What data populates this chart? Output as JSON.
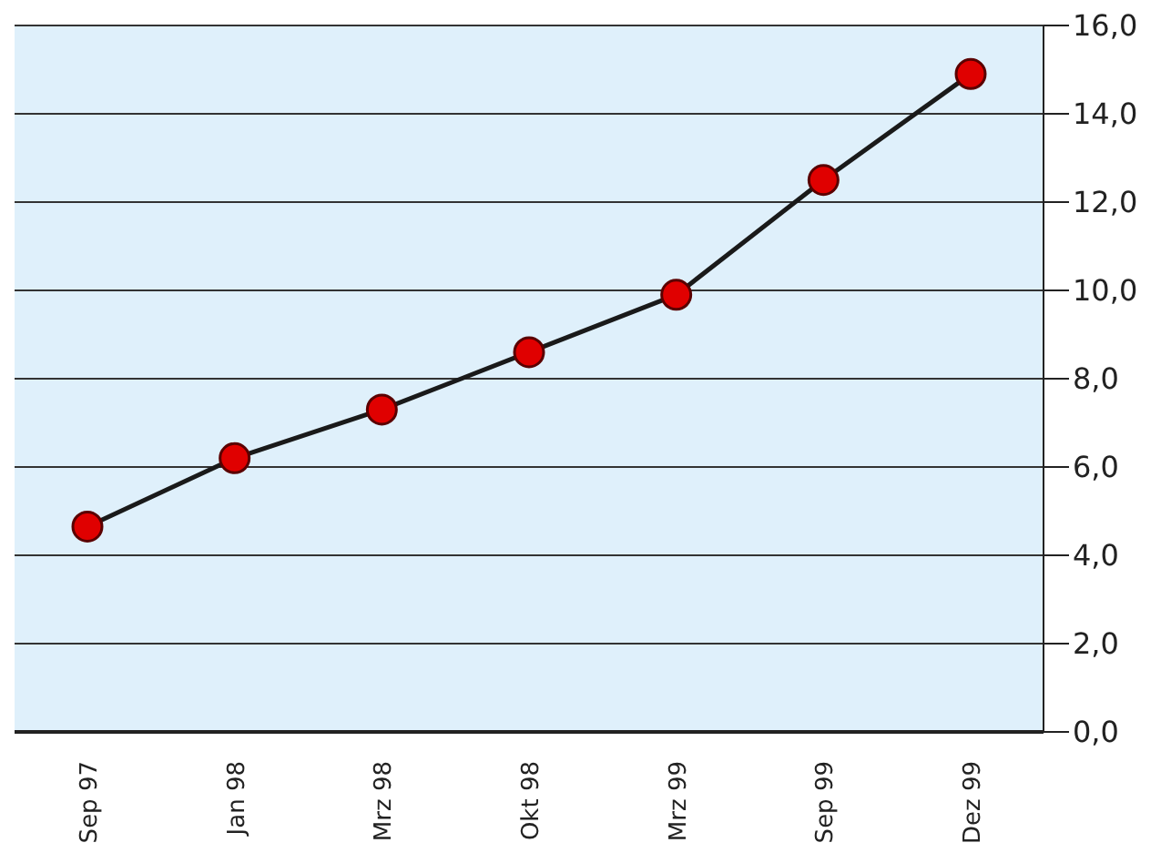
{
  "chart_data": {
    "type": "line",
    "categories": [
      "Sep 97",
      "Jan 98",
      "Mrz 98",
      "Okt 98",
      "Mrz 99",
      "Sep 99",
      "Dez 99"
    ],
    "series": [
      {
        "color": "#e00000",
        "values": [
          4.65,
          6.2,
          7.3,
          8.6,
          9.9,
          12.5,
          14.9
        ]
      }
    ],
    "ylim": [
      0,
      16
    ],
    "yticks": [
      {
        "value": 0,
        "label": "0,0"
      },
      {
        "value": 2,
        "label": "2,0"
      },
      {
        "value": 4,
        "label": "4,0"
      },
      {
        "value": 6,
        "label": "6,0"
      },
      {
        "value": 8,
        "label": "8,0"
      },
      {
        "value": 10,
        "label": "10,0"
      },
      {
        "value": 12,
        "label": "12,0"
      },
      {
        "value": 14,
        "label": "14,0"
      },
      {
        "value": 16,
        "label": "16,0"
      }
    ],
    "grid": "y",
    "marker": "circle",
    "line_style": "solid"
  }
}
